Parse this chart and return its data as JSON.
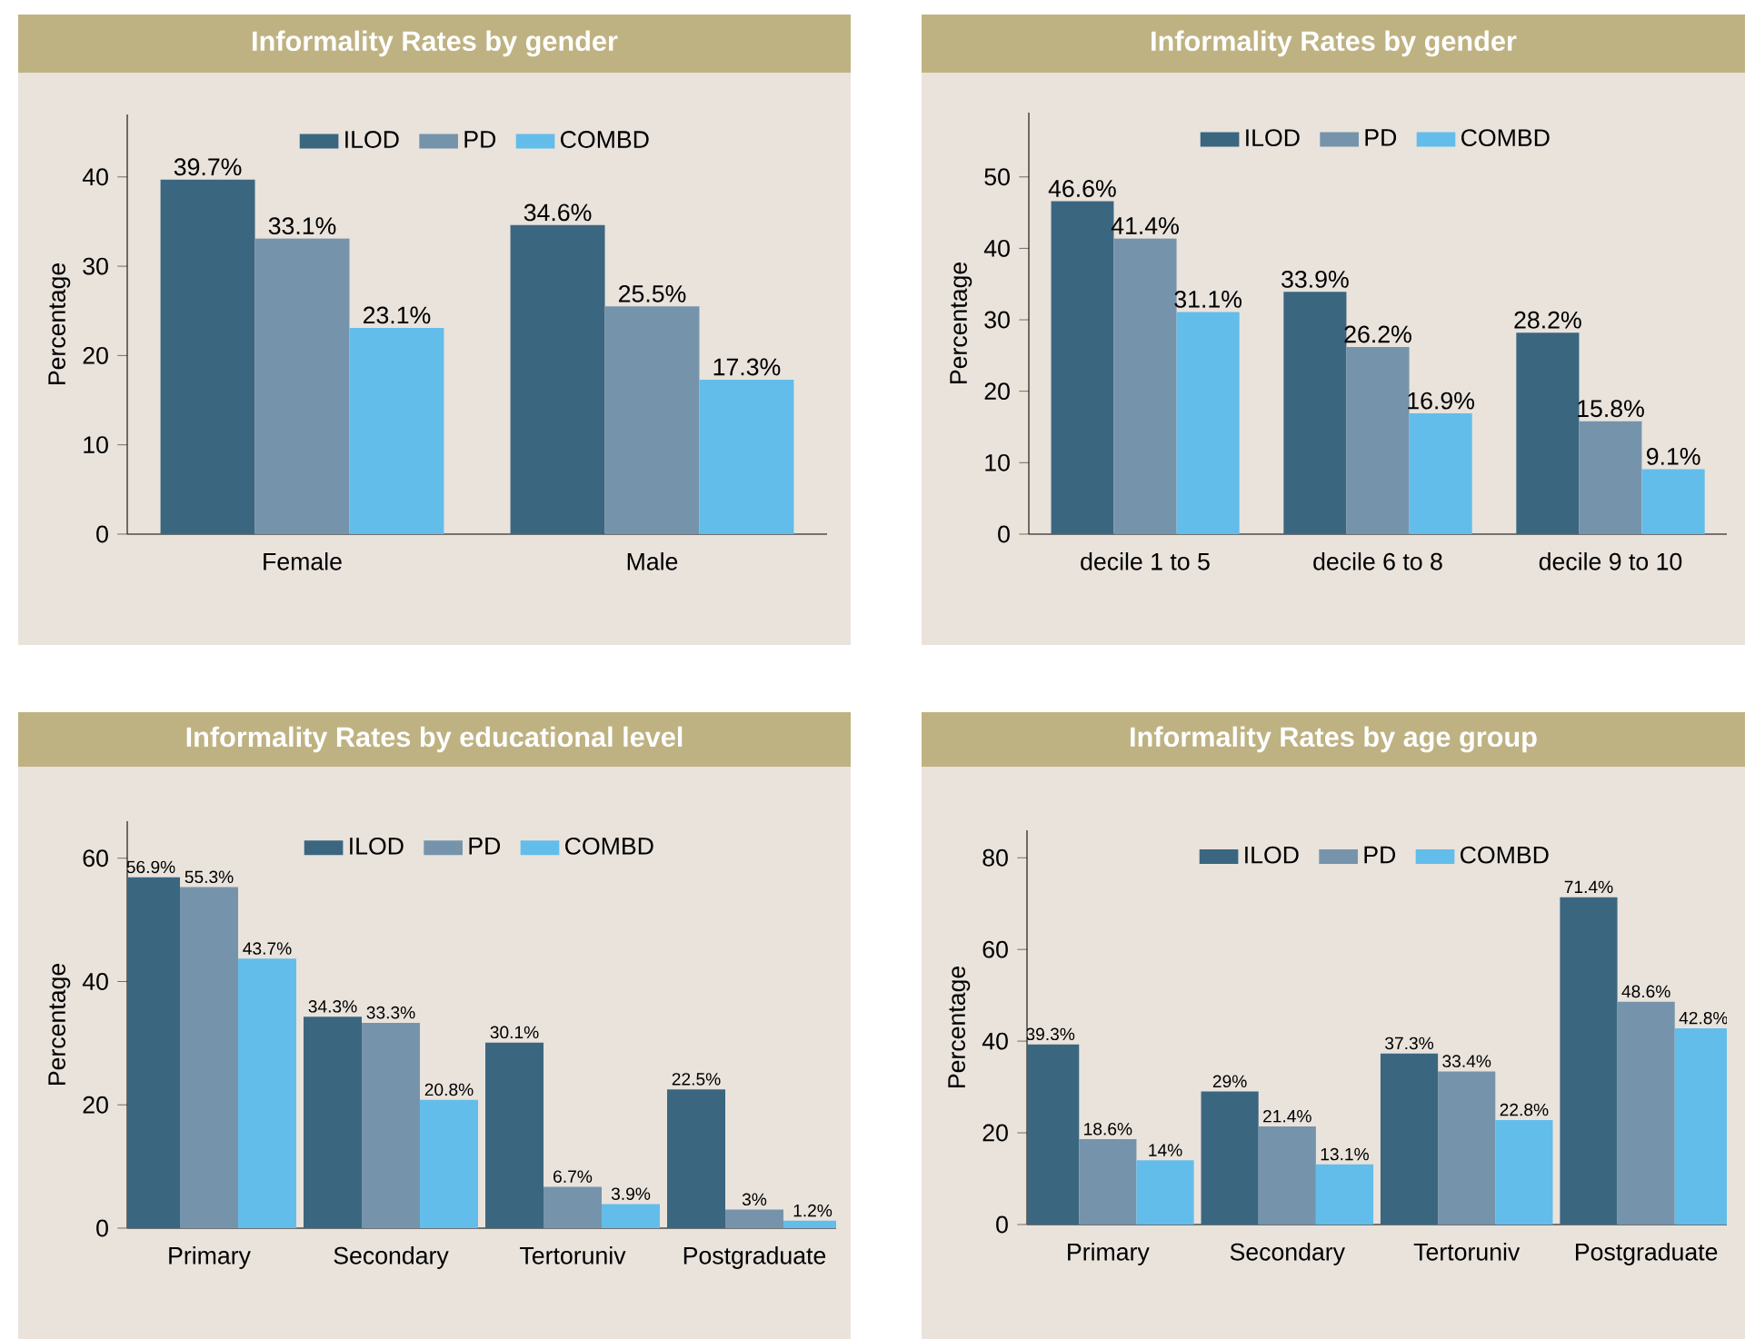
{
  "chart_data": [
    {
      "type": "bar",
      "title": "Informality Rates by gender",
      "ylabel": "Percentage",
      "categories": [
        "Female",
        "Male"
      ],
      "series": [
        {
          "name": "ILOD",
          "color": "#3b6680",
          "values": [
            39.7,
            34.6
          ],
          "value_labels": [
            "39.7%",
            "34.6%"
          ]
        },
        {
          "name": "PD",
          "color": "#7594ab",
          "values": [
            33.1,
            25.5
          ],
          "value_labels": [
            "33.1%",
            "25.5%"
          ]
        },
        {
          "name": "COMBD",
          "color": "#63bdea",
          "values": [
            23.1,
            17.3
          ],
          "value_labels": [
            "23.1%",
            "17.3%"
          ]
        }
      ],
      "ylim": [
        0,
        47
      ],
      "yticks": [
        0,
        10,
        20,
        30,
        40
      ],
      "legend": "top",
      "grid": false
    },
    {
      "type": "bar",
      "title": "Informality Rates by gender",
      "ylabel": "Percentage",
      "categories": [
        "decile 1 to 5",
        "decile 6 to 8",
        "decile 9 to 10"
      ],
      "series": [
        {
          "name": "ILOD",
          "color": "#3b6680",
          "values": [
            46.6,
            33.9,
            28.2
          ],
          "value_labels": [
            "46.6%",
            "33.9%",
            "28.2%"
          ]
        },
        {
          "name": "PD",
          "color": "#7594ab",
          "values": [
            41.4,
            26.2,
            15.8
          ],
          "value_labels": [
            "41.4%",
            "26.2%",
            "15.8%"
          ]
        },
        {
          "name": "COMBD",
          "color": "#63bdea",
          "values": [
            31.1,
            16.9,
            9.1
          ],
          "value_labels": [
            "31.1%",
            "16.9%",
            "9.1%"
          ]
        }
      ],
      "ylim": [
        0,
        59
      ],
      "yticks": [
        0,
        10,
        20,
        30,
        40,
        50
      ],
      "legend": "top",
      "grid": false
    },
    {
      "type": "bar",
      "title": "Informality Rates by educational level",
      "ylabel": "Percentage",
      "categories": [
        "Primary",
        "Secondary",
        "Tertoruniv",
        "Postgraduate"
      ],
      "series": [
        {
          "name": "ILOD",
          "color": "#3b6680",
          "values": [
            56.9,
            34.3,
            30.1,
            22.5
          ],
          "value_labels": [
            "56.9%",
            "34.3%",
            "30.1%",
            "22.5%"
          ]
        },
        {
          "name": "PD",
          "color": "#7594ab",
          "values": [
            55.3,
            33.3,
            6.7,
            3
          ],
          "value_labels": [
            "55.3%",
            "33.3%",
            "6.7%",
            "3%"
          ]
        },
        {
          "name": "COMBD",
          "color": "#63bdea",
          "values": [
            43.7,
            20.8,
            3.9,
            1.2
          ],
          "value_labels": [
            "43.7%",
            "20.8%",
            "3.9%",
            "1.2%"
          ]
        }
      ],
      "ylim": [
        0,
        66
      ],
      "yticks": [
        0,
        20,
        40,
        60
      ],
      "legend": "top",
      "grid": false
    },
    {
      "type": "bar",
      "title": "Informality Rates by age group",
      "ylabel": "Percentage",
      "categories": [
        "Primary",
        "Secondary",
        "Tertoruniv",
        "Postgraduate"
      ],
      "series": [
        {
          "name": "ILOD",
          "color": "#3b6680",
          "values": [
            39.3,
            29,
            37.3,
            71.4
          ],
          "value_labels": [
            "39.3%",
            "29%",
            "37.3%",
            "71.4%"
          ]
        },
        {
          "name": "PD",
          "color": "#7594ab",
          "values": [
            18.6,
            21.4,
            33.4,
            48.6
          ],
          "value_labels": [
            "18.6%",
            "21.4%",
            "33.4%",
            "48.6%"
          ]
        },
        {
          "name": "COMBD",
          "color": "#63bdea",
          "values": [
            14,
            13.1,
            22.8,
            42.8
          ],
          "value_labels": [
            "14%",
            "13.1%",
            "22.8%",
            "42.8%"
          ]
        }
      ],
      "ylim": [
        0,
        86
      ],
      "yticks": [
        0,
        20,
        40,
        60,
        80
      ],
      "legend": "top",
      "grid": false
    }
  ]
}
